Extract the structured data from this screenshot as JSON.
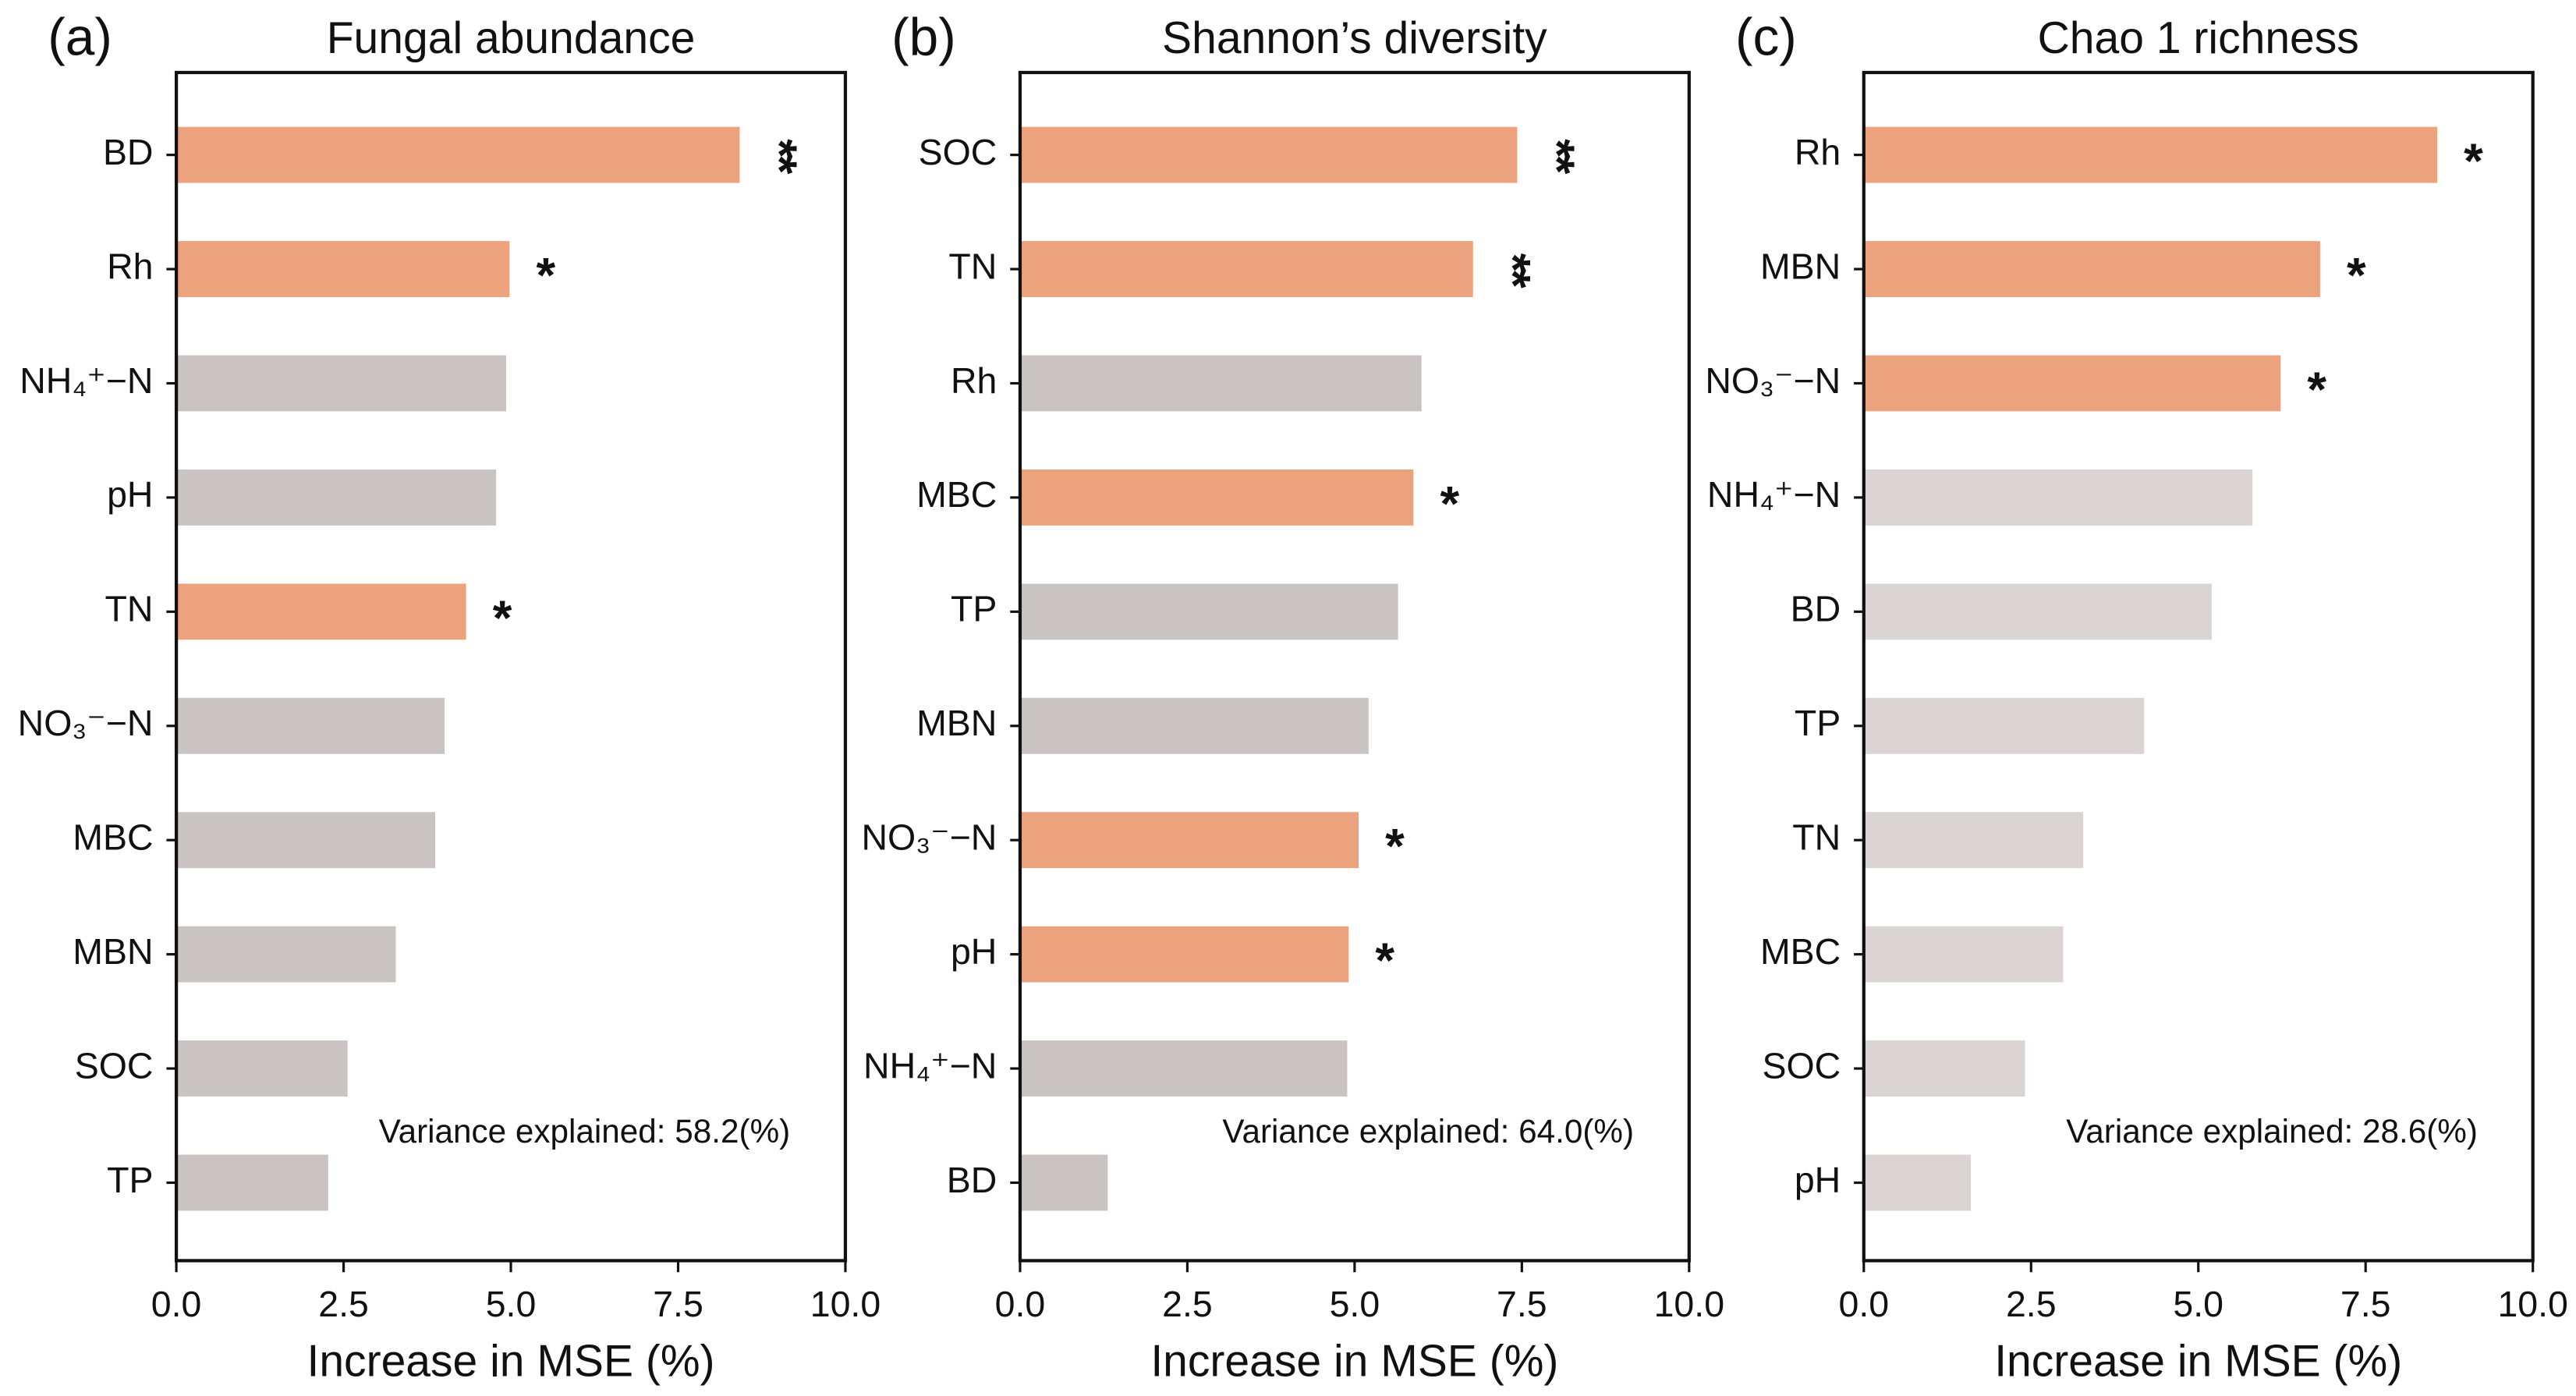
{
  "chart_data": [
    {
      "type": "barh",
      "panel_label": "(a)",
      "title": "Fungal abundance",
      "categories": [
        "BD",
        "Rh",
        "NH₄⁺−N",
        "pH",
        "TN",
        "NO₃⁻−N",
        "MBC",
        "MBN",
        "SOC",
        "TP"
      ],
      "values": [
        8.42,
        4.98,
        4.93,
        4.78,
        4.33,
        4.01,
        3.87,
        3.28,
        2.56,
        2.27
      ],
      "significance": [
        "**",
        "*",
        null,
        null,
        "*",
        null,
        null,
        null,
        null,
        null
      ],
      "annotation": "Variance explained: 58.2(%)",
      "xlabel": "Increase in MSE (%)",
      "xlim": [
        0,
        10
      ],
      "xticks": [
        {
          "value": 0,
          "label": "0.0"
        },
        {
          "value": 2.5,
          "label": "2.5"
        },
        {
          "value": 5,
          "label": "5.0"
        },
        {
          "value": 7.5,
          "label": "7.5"
        },
        {
          "value": 10,
          "label": "10.0"
        }
      ],
      "color": "#c9c4c2",
      "highlight_color": "#eda27e"
    },
    {
      "type": "barh",
      "panel_label": "(b)",
      "title": "Shannon’s diversity",
      "categories": [
        "SOC",
        "TN",
        "Rh",
        "MBC",
        "TP",
        "MBN",
        "NO₃⁻−N",
        "pH",
        "NH₄⁺−N",
        "BD"
      ],
      "values": [
        7.43,
        6.77,
        6.0,
        5.88,
        5.65,
        5.21,
        5.06,
        4.91,
        4.89,
        1.31
      ],
      "significance": [
        "**",
        "**",
        null,
        "*",
        null,
        null,
        "*",
        "*",
        null,
        null
      ],
      "annotation": "Variance explained: 64.0(%)",
      "xlabel": "Increase in MSE (%)",
      "xlim": [
        0,
        10
      ],
      "xticks": [
        {
          "value": 0,
          "label": "0.0"
        },
        {
          "value": 2.5,
          "label": "2.5"
        },
        {
          "value": 5,
          "label": "5.0"
        },
        {
          "value": 7.5,
          "label": "7.5"
        },
        {
          "value": 10,
          "label": "10.0"
        }
      ],
      "color": "#c9c4c2",
      "highlight_color": "#eda27e"
    },
    {
      "type": "barh",
      "panel_label": "(c)",
      "title": "Chao 1 richness",
      "categories": [
        "Rh",
        "MBN",
        "NO₃⁻−N",
        "NH₄⁺−N",
        "BD",
        "TP",
        "TN",
        "MBC",
        "SOC",
        "pH"
      ],
      "values": [
        8.57,
        6.82,
        6.23,
        5.81,
        5.2,
        4.19,
        3.28,
        2.98,
        2.41,
        1.6
      ],
      "significance": [
        "*",
        "*",
        "*",
        null,
        null,
        null,
        null,
        null,
        null,
        null
      ],
      "annotation": "Variance explained: 28.6(%)",
      "xlabel": "Increase in MSE (%)",
      "xlim": [
        0,
        10
      ],
      "xticks": [
        {
          "value": 0,
          "label": "0.0"
        },
        {
          "value": 2.5,
          "label": "2.5"
        },
        {
          "value": 5,
          "label": "5.0"
        },
        {
          "value": 7.5,
          "label": "7.5"
        },
        {
          "value": 10,
          "label": "10.0"
        }
      ],
      "color": "#dad4d2",
      "highlight_color": "#eda27e"
    }
  ]
}
